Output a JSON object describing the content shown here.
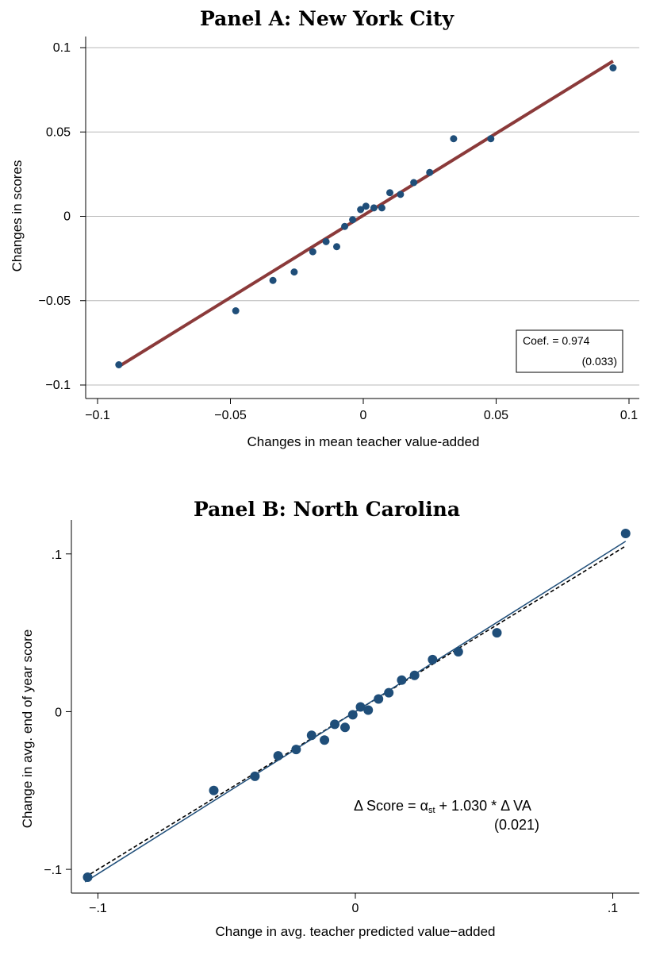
{
  "chart_data": [
    {
      "type": "scatter",
      "title": "Panel A: New York City",
      "xlabel": "Changes in mean teacher value-added",
      "ylabel": "Changes in scores",
      "xlim": [
        -0.1,
        0.1
      ],
      "ylim": [
        -0.1,
        0.1
      ],
      "xticks": [
        -0.1,
        -0.05,
        0,
        0.05,
        0.1
      ],
      "xtick_labels": [
        "−0.1",
        "−0.05",
        "0",
        "0.05",
        "0.1"
      ],
      "yticks": [
        -0.1,
        -0.05,
        0,
        0.05,
        0.1
      ],
      "ytick_labels": [
        "−0.1",
        "−0.05",
        "0",
        "0.05",
        "0.1"
      ],
      "grid": true,
      "points": [
        {
          "x": -0.092,
          "y": -0.088
        },
        {
          "x": -0.048,
          "y": -0.056
        },
        {
          "x": -0.034,
          "y": -0.038
        },
        {
          "x": -0.026,
          "y": -0.033
        },
        {
          "x": -0.019,
          "y": -0.021
        },
        {
          "x": -0.014,
          "y": -0.015
        },
        {
          "x": -0.01,
          "y": -0.018
        },
        {
          "x": -0.007,
          "y": -0.006
        },
        {
          "x": -0.004,
          "y": -0.002
        },
        {
          "x": -0.001,
          "y": 0.004
        },
        {
          "x": 0.001,
          "y": 0.006
        },
        {
          "x": 0.004,
          "y": 0.005
        },
        {
          "x": 0.007,
          "y": 0.005
        },
        {
          "x": 0.01,
          "y": 0.014
        },
        {
          "x": 0.014,
          "y": 0.013
        },
        {
          "x": 0.019,
          "y": 0.02
        },
        {
          "x": 0.025,
          "y": 0.026
        },
        {
          "x": 0.034,
          "y": 0.046
        },
        {
          "x": 0.048,
          "y": 0.046
        },
        {
          "x": 0.094,
          "y": 0.088
        }
      ],
      "fit_line": {
        "x": [
          -0.092,
          0.094
        ],
        "y": [
          -0.089,
          0.092
        ],
        "color": "#8b3a3a"
      },
      "point_color": "#1f4e79",
      "annotation": {
        "line1": "Coef. = 0.974",
        "line2": "(0.033)"
      }
    },
    {
      "type": "scatter",
      "title": "Panel B: North Carolina",
      "xlabel": "Change in avg. teacher predicted value−added",
      "ylabel": "Change in avg. end of year score",
      "xlim": [
        -0.106,
        0.106
      ],
      "ylim": [
        -0.108,
        0.117
      ],
      "xticks": [
        -0.1,
        0,
        0.1
      ],
      "xtick_labels": [
        "−.1",
        "0",
        ".1"
      ],
      "yticks": [
        -0.1,
        0,
        0.1
      ],
      "ytick_labels": [
        "−.1",
        "0",
        ".1"
      ],
      "grid": false,
      "points": [
        {
          "x": -0.104,
          "y": -0.105
        },
        {
          "x": -0.055,
          "y": -0.05
        },
        {
          "x": -0.039,
          "y": -0.041
        },
        {
          "x": -0.03,
          "y": -0.028
        },
        {
          "x": -0.023,
          "y": -0.024
        },
        {
          "x": -0.017,
          "y": -0.015
        },
        {
          "x": -0.012,
          "y": -0.018
        },
        {
          "x": -0.008,
          "y": -0.008
        },
        {
          "x": -0.004,
          "y": -0.01
        },
        {
          "x": -0.001,
          "y": -0.002
        },
        {
          "x": 0.002,
          "y": 0.003
        },
        {
          "x": 0.005,
          "y": 0.001
        },
        {
          "x": 0.009,
          "y": 0.008
        },
        {
          "x": 0.013,
          "y": 0.012
        },
        {
          "x": 0.018,
          "y": 0.02
        },
        {
          "x": 0.023,
          "y": 0.023
        },
        {
          "x": 0.03,
          "y": 0.033
        },
        {
          "x": 0.04,
          "y": 0.038
        },
        {
          "x": 0.055,
          "y": 0.05
        },
        {
          "x": 0.105,
          "y": 0.113
        }
      ],
      "fit_line": {
        "x": [
          -0.105,
          0.105
        ],
        "y": [
          -0.108,
          0.108
        ],
        "color": "#1f4e79"
      },
      "ref_line": {
        "x": [
          -0.105,
          0.105
        ],
        "y": [
          -0.105,
          0.105
        ],
        "style": "dashed"
      },
      "point_color": "#1f4e79",
      "annotation": {
        "line1_pre": "Δ Score = α",
        "line1_sub": "st",
        "line1_post": " +  1.030 * Δ VA",
        "line2": "(0.021)"
      }
    }
  ]
}
